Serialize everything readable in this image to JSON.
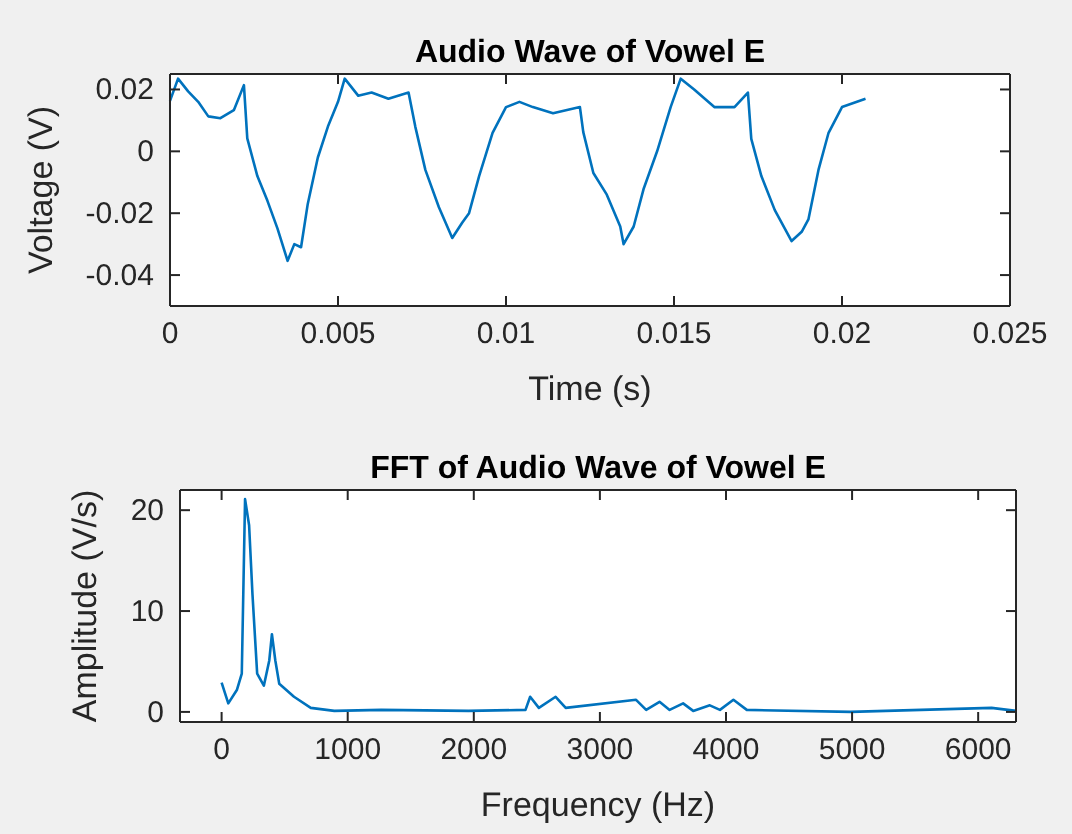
{
  "chart_data": [
    {
      "type": "line",
      "title": "Audio Wave of Vowel E",
      "xlabel": "Time (s)",
      "ylabel": "Voltage (V)",
      "color": "#0072bd",
      "x": [
        0,
        0.00024,
        0.00054,
        0.00084,
        0.00114,
        0.0015,
        0.0019,
        0.0022,
        0.0023,
        0.0026,
        0.0029,
        0.0032,
        0.0035,
        0.0037,
        0.0039,
        0.0041,
        0.0044,
        0.0047,
        0.005,
        0.0052,
        0.0056,
        0.006,
        0.0065,
        0.0071,
        0.0073,
        0.0076,
        0.008,
        0.0084,
        0.0087,
        0.0089,
        0.0092,
        0.0096,
        0.01,
        0.0104,
        0.0108,
        0.0114,
        0.0122,
        0.0123,
        0.0126,
        0.013,
        0.0134,
        0.0135,
        0.0138,
        0.0141,
        0.0145,
        0.0149,
        0.0152,
        0.0156,
        0.0162,
        0.0168,
        0.0172,
        0.0173,
        0.0176,
        0.018,
        0.0185,
        0.0188,
        0.019,
        0.0193,
        0.0196,
        0.02,
        0.0207
      ],
      "values": [
        0.0163,
        0.0235,
        0.0194,
        0.016,
        0.0113,
        0.0107,
        0.0133,
        0.0214,
        0.0042,
        -0.008,
        -0.016,
        -0.025,
        -0.0354,
        -0.03,
        -0.031,
        -0.017,
        -0.002,
        0.008,
        0.016,
        0.0235,
        0.018,
        0.019,
        0.017,
        0.019,
        0.008,
        -0.006,
        -0.018,
        -0.028,
        -0.023,
        -0.02,
        -0.008,
        0.006,
        0.0143,
        0.016,
        0.0143,
        0.0123,
        0.0143,
        0.0062,
        -0.007,
        -0.014,
        -0.0243,
        -0.03,
        -0.0243,
        -0.012,
        0.0001,
        0.0143,
        0.0235,
        0.02,
        0.0143,
        0.0143,
        0.019,
        0.004,
        -0.008,
        -0.019,
        -0.029,
        -0.026,
        -0.022,
        -0.006,
        0.006,
        0.0143,
        0.017
      ],
      "xlim": [
        0,
        0.025
      ],
      "xticks": [
        0,
        0.005,
        0.01,
        0.015,
        0.02,
        0.025
      ],
      "ylim": [
        -0.05,
        0.025
      ],
      "yticks": [
        -0.04,
        -0.02,
        0,
        0.02
      ]
    },
    {
      "type": "line",
      "title": "FFT of Audio Wave of Vowel E",
      "xlabel": "Frequency (Hz)",
      "ylabel": "Amplitude (V/s)",
      "color": "#0072bd",
      "x": [
        0,
        53,
        122,
        160,
        186,
        218,
        245,
        282,
        335,
        378,
        399,
        426,
        457,
        574,
        707,
        894,
        1266,
        1957,
        2410,
        2447,
        2516,
        2649,
        2729,
        3287,
        3367,
        3473,
        3553,
        3660,
        3740,
        3872,
        3952,
        4059,
        4165,
        4989,
        6106,
        6300
      ],
      "values": [
        2.9,
        0.85,
        2.2,
        3.8,
        21.1,
        18.5,
        11.6,
        3.8,
        2.6,
        5.1,
        7.7,
        5.1,
        2.8,
        1.5,
        0.4,
        0.1,
        0.2,
        0.1,
        0.2,
        1.5,
        0.4,
        1.5,
        0.4,
        1.2,
        0.2,
        1,
        0.2,
        0.85,
        0.1,
        0.65,
        0.2,
        1.2,
        0.2,
        0,
        0.4,
        0.1
      ],
      "xlim": [
        -330,
        6300
      ],
      "xticks": [
        0,
        1000,
        2000,
        3000,
        4000,
        5000,
        6000
      ],
      "ylim": [
        -1,
        22
      ],
      "yticks": [
        0,
        10,
        20
      ]
    }
  ]
}
